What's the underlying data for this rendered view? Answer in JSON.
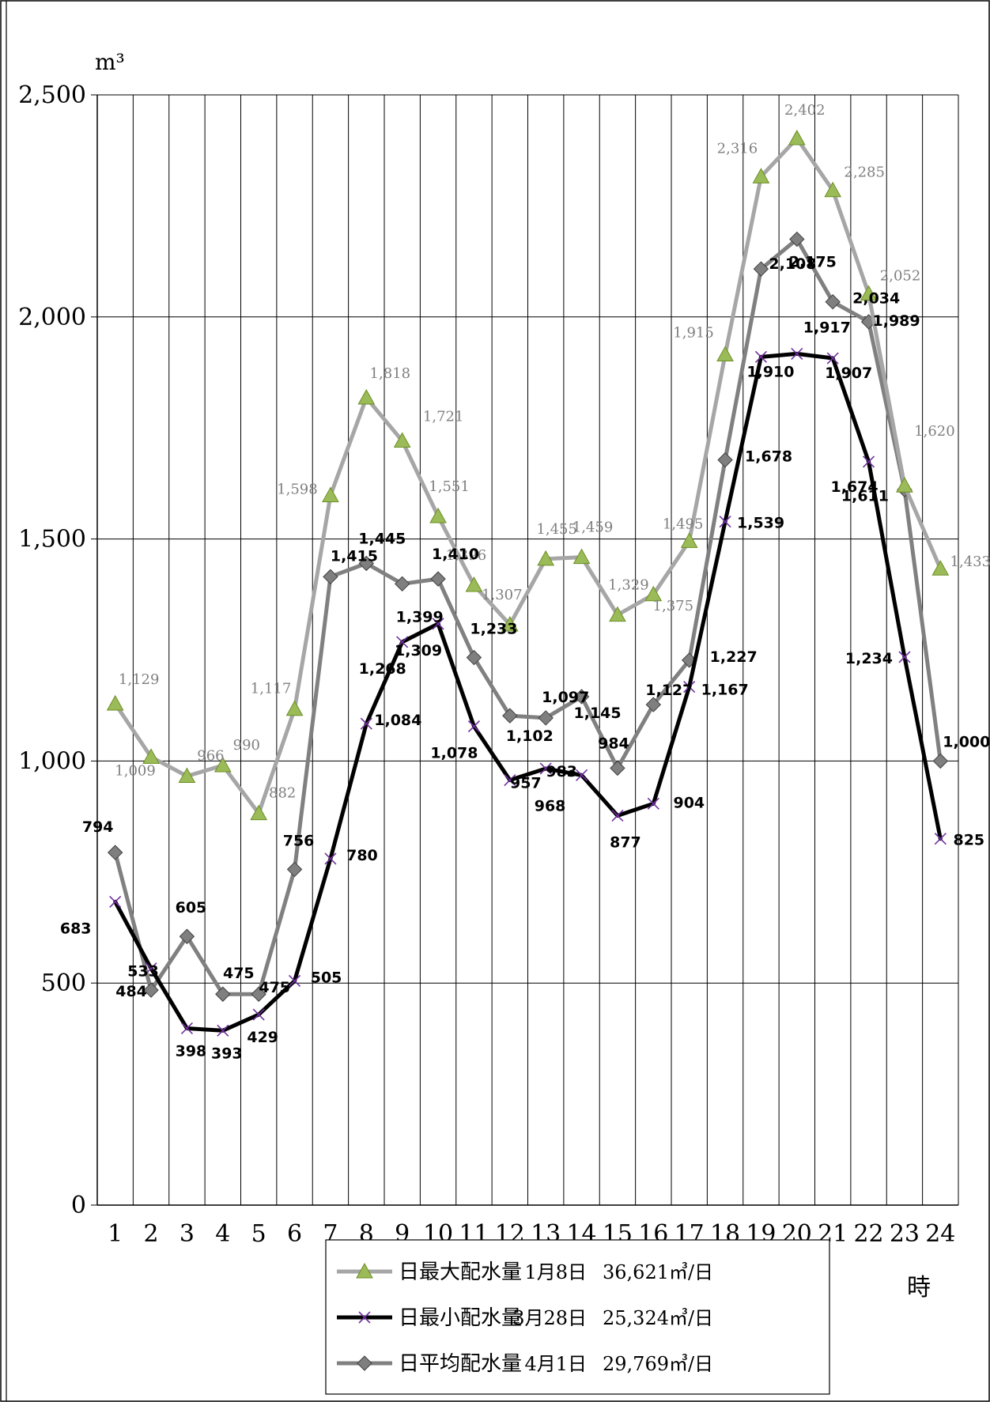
{
  "chart_data": {
    "type": "line",
    "title": "",
    "ylabel": "m³",
    "xlabel": "時",
    "ylim": [
      0,
      2500
    ],
    "yticks": [
      0,
      500,
      1000,
      1500,
      2000,
      2500
    ],
    "ytick_labels": [
      "0",
      "500",
      "1,000",
      "1,500",
      "2,000",
      "2,500"
    ],
    "categories": [
      "1",
      "2",
      "3",
      "4",
      "5",
      "6",
      "7",
      "8",
      "9",
      "10",
      "11",
      "12",
      "13",
      "14",
      "15",
      "16",
      "17",
      "18",
      "19",
      "20",
      "21",
      "22",
      "23",
      "24"
    ],
    "grid": true,
    "legend_position": "bottom",
    "series": [
      {
        "name": "日最大配水量",
        "legend_date": "1月8日",
        "legend_total": "36,621㎥/日",
        "color": "#a6a6a6",
        "marker": "triangle",
        "marker_color": "#9bbb59",
        "values": [
          1129,
          1009,
          966,
          990,
          882,
          1117,
          1598,
          1818,
          1721,
          1551,
          1396,
          1307,
          1455,
          1459,
          1329,
          1375,
          1495,
          1915,
          2316,
          2402,
          2285,
          2052,
          1620,
          1433
        ],
        "labels": [
          "1,129",
          "1,009",
          "966",
          "990",
          "882",
          "1,117",
          "1,598",
          "1,818",
          "1,721",
          "1,551",
          "1,396",
          "1,307",
          "1,455",
          "1,459",
          "1,329",
          "1,375",
          "1,495",
          "1,915",
          "2,316",
          "2,402",
          "2,285",
          "2,052",
          "1,620",
          "1,433"
        ]
      },
      {
        "name": "日最小配水量",
        "legend_date": "3月28日",
        "legend_total": "25,324㎥/日",
        "color": "#000000",
        "marker": "x",
        "marker_color": "#7030a0",
        "values": [
          683,
          533,
          398,
          393,
          429,
          505,
          780,
          1084,
          1268,
          1309,
          1078,
          957,
          983,
          968,
          877,
          904,
          1167,
          1539,
          1910,
          1917,
          1907,
          1674,
          1234,
          825
        ],
        "labels": [
          "683",
          "533",
          "398",
          "393",
          "429",
          "505",
          "780",
          "1,084",
          "1,268",
          "1,309",
          "1,078",
          "957",
          "983",
          "968",
          "877",
          "904",
          "1,167",
          "1,539",
          "1,910",
          "1,917",
          "1,907",
          "1,674",
          "1,234",
          "825"
        ]
      },
      {
        "name": "日平均配水量",
        "legend_date": "4月1日",
        "legend_total": "29,769㎥/日",
        "color": "#808080",
        "marker": "diamond",
        "marker_color": "#7f7f7f",
        "values": [
          794,
          484,
          605,
          475,
          475,
          756,
          1415,
          1445,
          1399,
          1410,
          1233,
          1102,
          1097,
          1145,
          984,
          1127,
          1227,
          1678,
          2108,
          2175,
          2034,
          1989,
          1611,
          1000
        ],
        "labels": [
          "794",
          "484",
          "605",
          "475",
          "475",
          "756",
          "1,415",
          "1,445",
          "1,399",
          "1,410",
          "1,233",
          "1,102",
          "1,097",
          "1,145",
          "984",
          "1,127",
          "1,227",
          "1,678",
          "2,108",
          "2,175",
          "2,034",
          "1,989",
          "1,611",
          "1,000"
        ]
      }
    ]
  }
}
